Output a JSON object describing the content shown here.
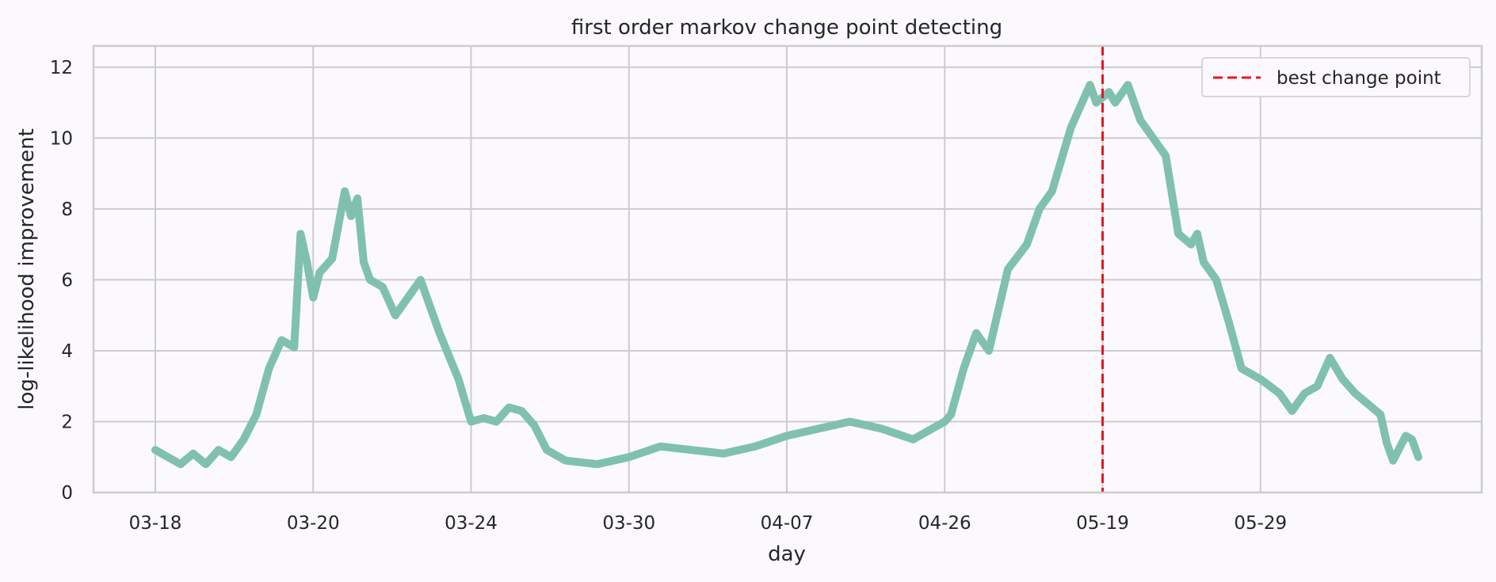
{
  "chart_data": {
    "type": "line",
    "title": "first order markov change point detecting",
    "xlabel": "day",
    "ylabel": "log-likelihood improvement",
    "xlim": [
      0,
      1000
    ],
    "ylim": [
      0,
      12.6
    ],
    "x_ticks": [
      {
        "x": 0,
        "label": "03-18"
      },
      {
        "x": 125,
        "label": "03-20"
      },
      {
        "x": 250,
        "label": "03-24"
      },
      {
        "x": 375,
        "label": "03-30"
      },
      {
        "x": 500,
        "label": "04-07"
      },
      {
        "x": 625,
        "label": "04-26"
      },
      {
        "x": 750,
        "label": "05-19"
      },
      {
        "x": 875,
        "label": "05-29"
      }
    ],
    "y_ticks": [
      0,
      2,
      4,
      6,
      8,
      10,
      12
    ],
    "grid": true,
    "legend": {
      "position": "top-right",
      "entries": [
        {
          "label": "best change point",
          "color": "#e31a1c",
          "style": "dashed"
        }
      ]
    },
    "series": [
      {
        "color": "#7fc1ae",
        "x": [
          0,
          10,
          20,
          30,
          40,
          50,
          60,
          70,
          80,
          90,
          100,
          110,
          115,
          120,
          125,
          130,
          140,
          150,
          155,
          160,
          165,
          170,
          180,
          190,
          200,
          210,
          225,
          240,
          250,
          260,
          270,
          280,
          290,
          300,
          310,
          325,
          350,
          375,
          400,
          425,
          450,
          475,
          500,
          525,
          550,
          575,
          600,
          615,
          625,
          630,
          640,
          650,
          660,
          675,
          690,
          700,
          710,
          725,
          740,
          745,
          755,
          760,
          770,
          780,
          790,
          800,
          810,
          820,
          825,
          830,
          840,
          850,
          860,
          875,
          890,
          900,
          910,
          920,
          930,
          940,
          950,
          960,
          970,
          975,
          980,
          990,
          995,
          1000
        ],
        "y": [
          1.2,
          1.0,
          0.8,
          1.1,
          0.8,
          1.2,
          1.0,
          1.5,
          2.2,
          3.5,
          4.3,
          4.1,
          7.3,
          6.5,
          5.5,
          6.2,
          6.6,
          8.5,
          7.8,
          8.3,
          6.5,
          6.0,
          5.8,
          5.0,
          5.5,
          6.0,
          4.5,
          3.2,
          2.0,
          2.1,
          2.0,
          2.4,
          2.3,
          1.9,
          1.2,
          0.9,
          0.8,
          1.0,
          1.3,
          1.2,
          1.1,
          1.3,
          1.6,
          1.8,
          2.0,
          1.8,
          1.5,
          1.8,
          2.0,
          2.2,
          3.5,
          4.5,
          4.0,
          6.3,
          7.0,
          8.0,
          8.5,
          10.3,
          11.5,
          11.0,
          11.3,
          11.0,
          11.5,
          10.5,
          10.0,
          9.5,
          7.3,
          7.0,
          7.3,
          6.5,
          6.0,
          4.8,
          3.5,
          3.2,
          2.8,
          2.3,
          2.8,
          3.0,
          3.8,
          3.2,
          2.8,
          2.5,
          2.2,
          1.4,
          0.9,
          1.6,
          1.5,
          1.0
        ]
      }
    ],
    "vline": {
      "x": 750,
      "label": "best change point",
      "color": "#e31a1c"
    }
  }
}
